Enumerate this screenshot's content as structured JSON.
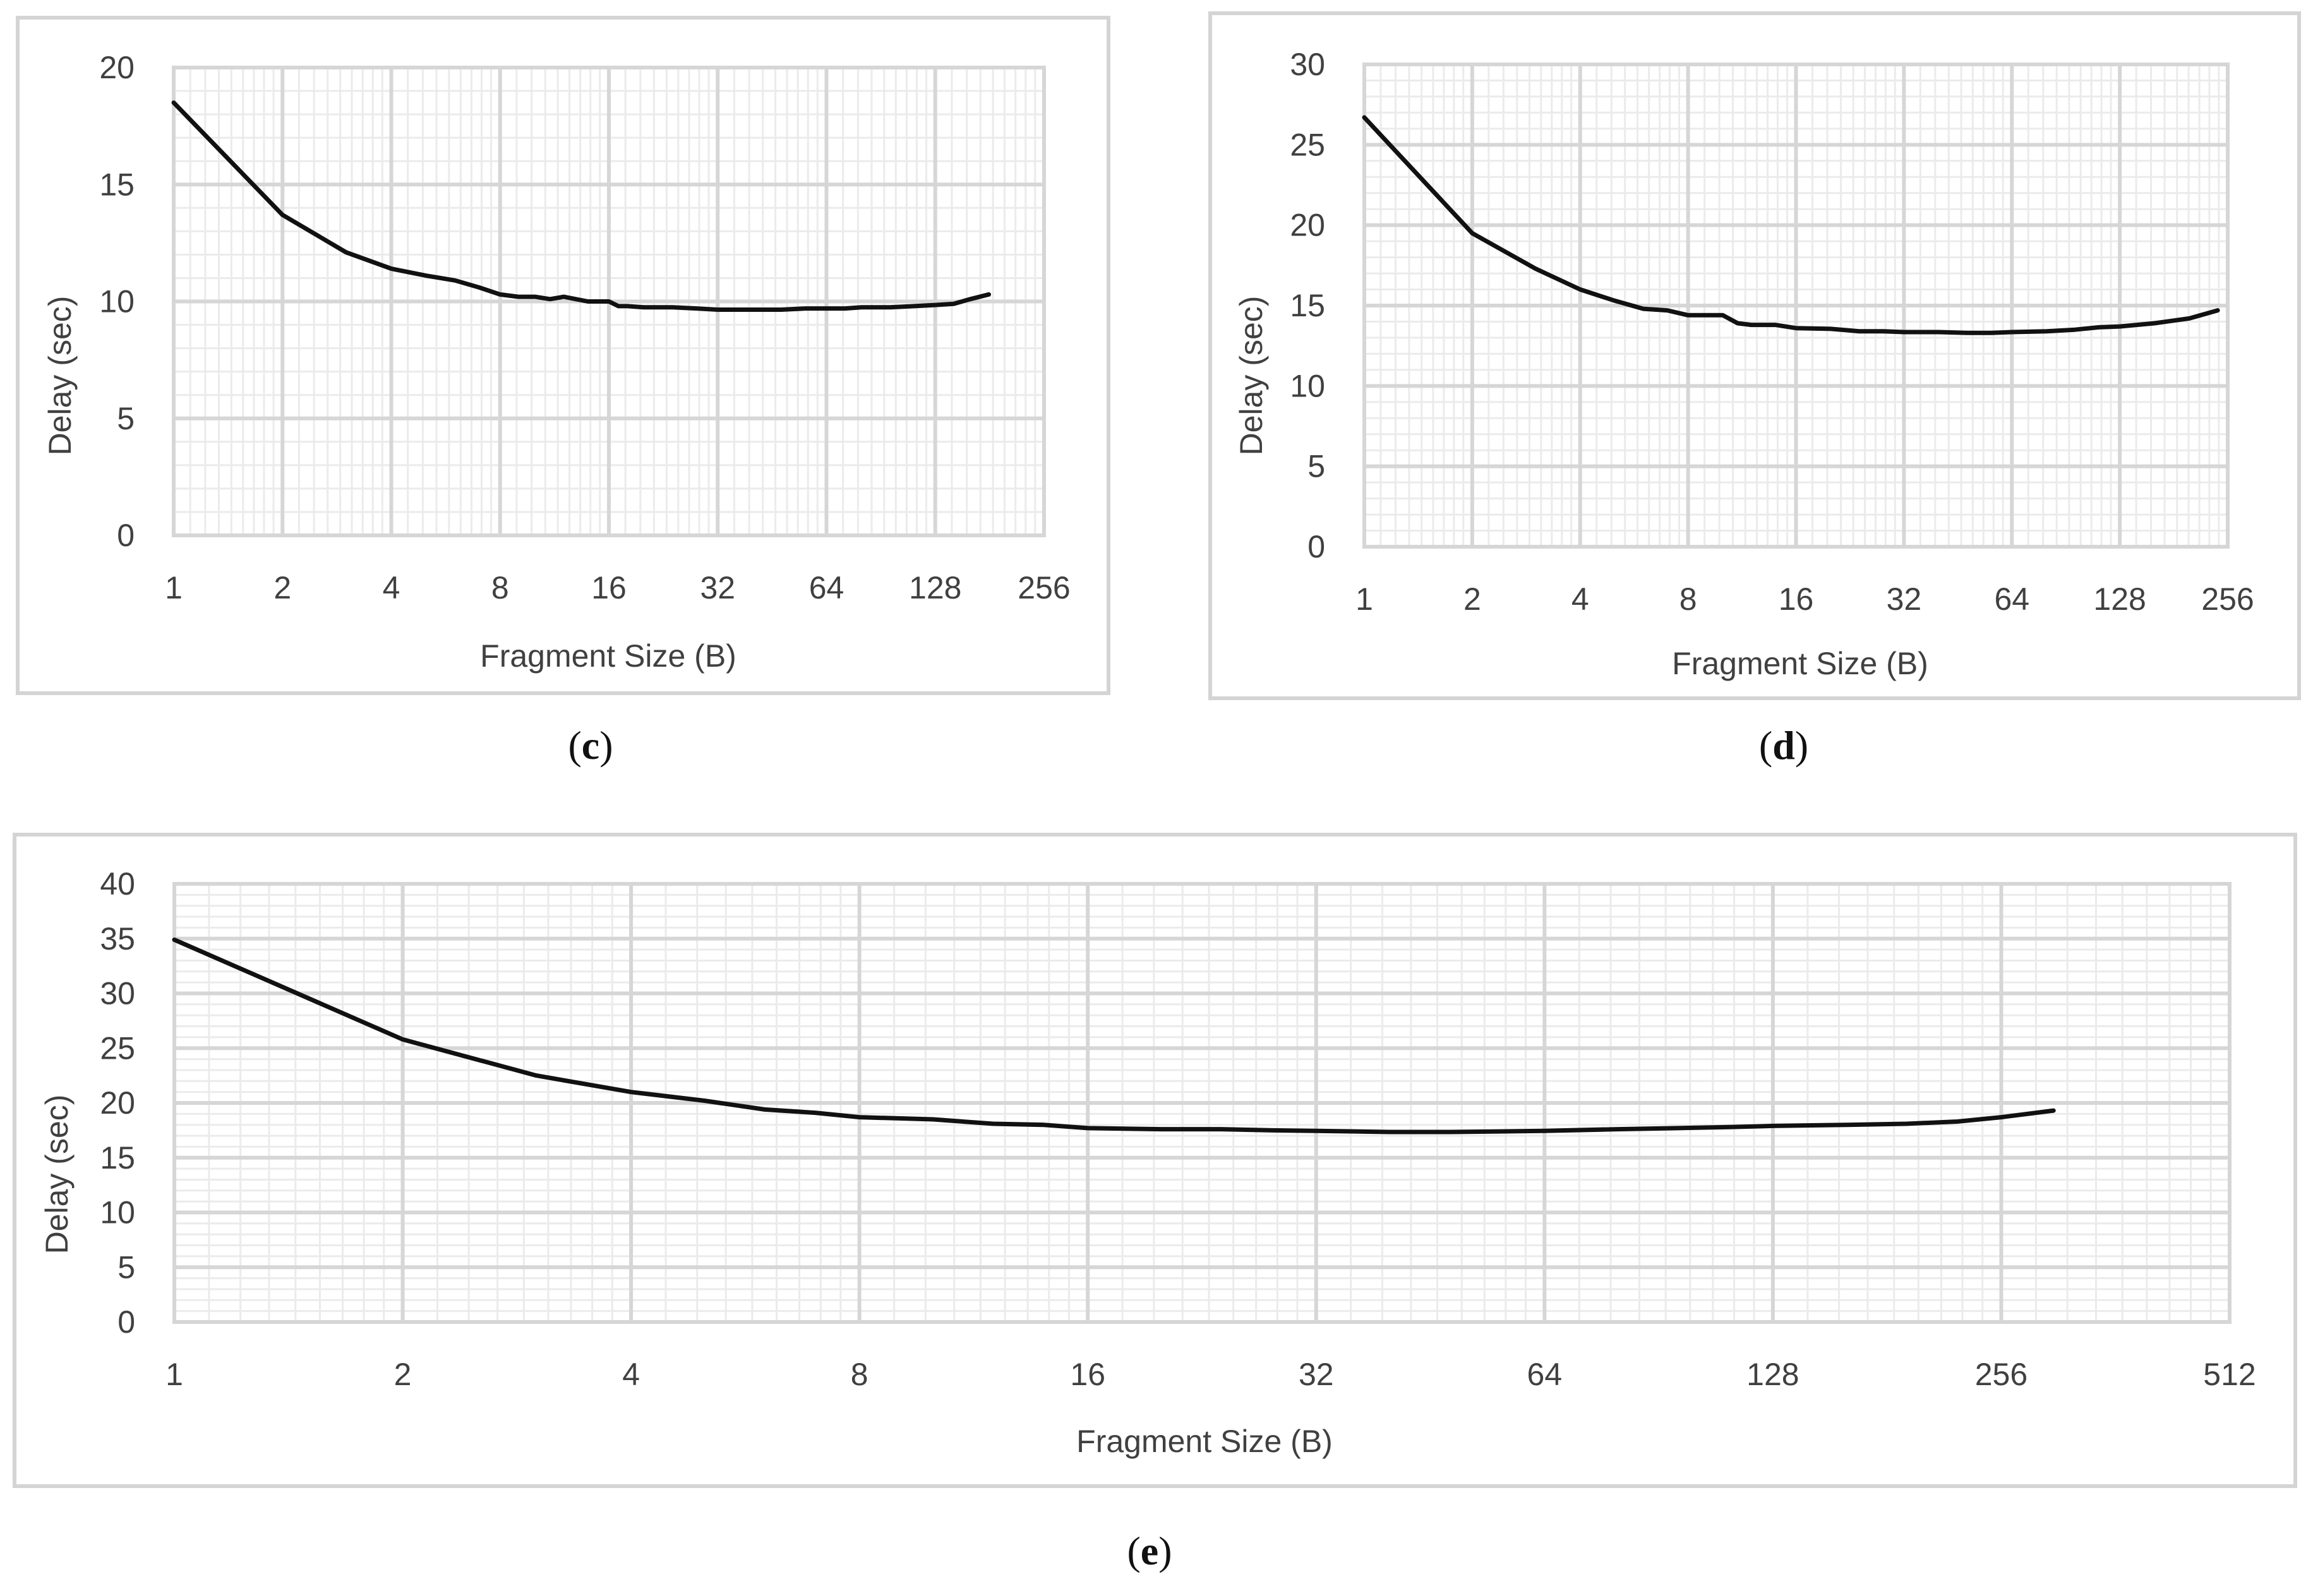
{
  "chart_data": [
    {
      "id": "c",
      "type": "line",
      "caption": "c",
      "xlabel": "Fragment Size (B)",
      "ylabel": "Delay (sec)",
      "x_scale": "log2",
      "x_ticks": [
        "1",
        "2",
        "4",
        "8",
        "16",
        "32",
        "64",
        "128",
        "256"
      ],
      "y_ticks": [
        "0",
        "5",
        "10",
        "15",
        "20"
      ],
      "xlim": [
        1,
        256
      ],
      "ylim": [
        0,
        20
      ],
      "grid": true,
      "series": [
        {
          "name": "Delay",
          "x": [
            1,
            2,
            3,
            4,
            5,
            6,
            7,
            8,
            9,
            10,
            11,
            12,
            14,
            16,
            17,
            18,
            20,
            24,
            28,
            32,
            36,
            40,
            48,
            56,
            64,
            72,
            80,
            96,
            112,
            128,
            144,
            160,
            180
          ],
          "y": [
            18.5,
            13.7,
            12.1,
            11.4,
            11.1,
            10.9,
            10.6,
            10.3,
            10.2,
            10.2,
            10.1,
            10.2,
            10.0,
            10.0,
            9.8,
            9.8,
            9.75,
            9.75,
            9.7,
            9.65,
            9.65,
            9.65,
            9.65,
            9.7,
            9.7,
            9.7,
            9.75,
            9.75,
            9.8,
            9.85,
            9.9,
            10.1,
            10.3
          ]
        }
      ]
    },
    {
      "id": "d",
      "type": "line",
      "caption": "d",
      "xlabel": "Fragment Size (B)",
      "ylabel": "Delay (sec)",
      "x_scale": "log2",
      "x_ticks": [
        "1",
        "2",
        "4",
        "8",
        "16",
        "32",
        "64",
        "128",
        "256"
      ],
      "y_ticks": [
        "0",
        "5",
        "10",
        "15",
        "20",
        "25",
        "30"
      ],
      "xlim": [
        1,
        256
      ],
      "ylim": [
        0,
        30
      ],
      "grid": true,
      "series": [
        {
          "name": "Delay",
          "x": [
            1,
            2,
            3,
            4,
            5,
            6,
            7,
            8,
            9,
            10,
            11,
            12,
            14,
            16,
            20,
            24,
            28,
            32,
            40,
            48,
            56,
            64,
            80,
            96,
            112,
            128,
            160,
            200,
            240
          ],
          "y": [
            26.7,
            19.5,
            17.3,
            16.0,
            15.3,
            14.8,
            14.7,
            14.4,
            14.4,
            14.4,
            13.9,
            13.8,
            13.8,
            13.6,
            13.55,
            13.4,
            13.4,
            13.35,
            13.35,
            13.3,
            13.3,
            13.35,
            13.4,
            13.5,
            13.65,
            13.7,
            13.9,
            14.2,
            14.7
          ]
        }
      ]
    },
    {
      "id": "e",
      "type": "line",
      "caption": "e",
      "xlabel": "Fragment Size (B)",
      "ylabel": "Delay (sec)",
      "x_scale": "log2",
      "x_ticks": [
        "1",
        "2",
        "4",
        "8",
        "16",
        "32",
        "64",
        "128",
        "256",
        "512"
      ],
      "y_ticks": [
        "0",
        "5",
        "10",
        "15",
        "20",
        "25",
        "30",
        "35",
        "40"
      ],
      "xlim": [
        1,
        512
      ],
      "ylim": [
        0,
        40
      ],
      "grid": true,
      "series": [
        {
          "name": "Delay",
          "x": [
            1,
            2,
            3,
            4,
            5,
            6,
            7,
            8,
            10,
            12,
            14,
            16,
            20,
            24,
            28,
            32,
            36,
            40,
            48,
            56,
            64,
            80,
            96,
            112,
            128,
            160,
            192,
            224,
            256,
            300
          ],
          "y": [
            34.9,
            25.8,
            22.5,
            21.0,
            20.2,
            19.4,
            19.1,
            18.7,
            18.5,
            18.1,
            18.0,
            17.7,
            17.6,
            17.6,
            17.5,
            17.45,
            17.4,
            17.35,
            17.35,
            17.4,
            17.45,
            17.6,
            17.7,
            17.8,
            17.9,
            18.0,
            18.1,
            18.3,
            18.7,
            19.3
          ]
        }
      ]
    }
  ]
}
